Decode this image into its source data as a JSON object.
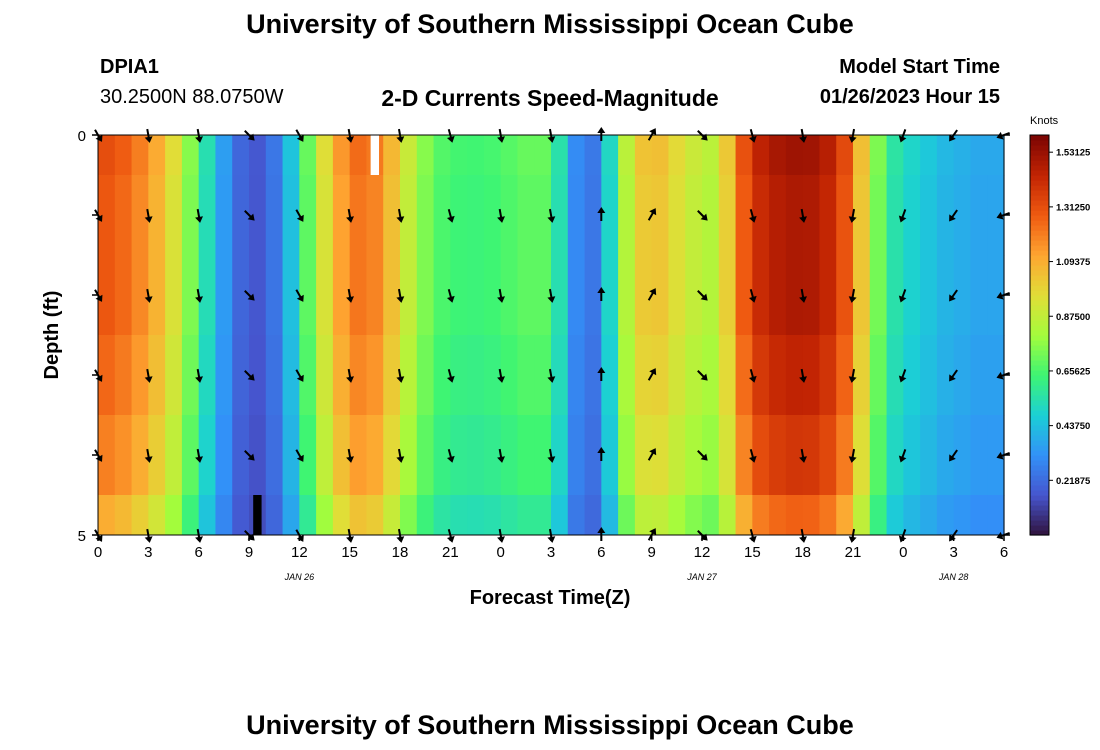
{
  "header": {
    "title": "University of Southern Mississippi Ocean Cube",
    "station_id": "DPIA1",
    "station_coords": "30.2500N  88.0750W",
    "chart_subtitle": "2-D Currents Speed-Magnitude",
    "model_label": "Model Start Time",
    "model_time": "01/26/2023 Hour 15"
  },
  "footer": {
    "title_repeat": "University of Southern Mississippi Ocean Cube"
  },
  "colors": {
    "background": "#ffffff",
    "axis": "#000000",
    "arrow": "#000000"
  },
  "chart_data": {
    "type": "heatmap",
    "title": "2-D Currents Speed-Magnitude",
    "xlabel": "Forecast Time(Z)",
    "ylabel": "Depth (ft)",
    "x_tick_labels": [
      "0",
      "3",
      "6",
      "9",
      "12",
      "15",
      "18",
      "21",
      "0",
      "3",
      "6",
      "9",
      "12",
      "15",
      "18",
      "21",
      "0",
      "3",
      "6"
    ],
    "y_tick_labels": [
      "0",
      "5"
    ],
    "ylim": [
      0,
      5
    ],
    "date_labels": [
      {
        "text": "JAN 26",
        "tick_index": 4
      },
      {
        "text": "JAN 27",
        "tick_index": 12
      },
      {
        "text": "JAN 28",
        "tick_index": 17
      }
    ],
    "colorbar": {
      "unit": "Knots",
      "min": 0,
      "max": 1.6,
      "tick_values": [
        1.53125,
        1.3125,
        1.09375,
        0.875,
        0.65625,
        0.4375,
        0.21875
      ],
      "tick_labels": [
        "1.53125",
        "1.31250",
        "1.09375",
        "0.87500",
        "0.65625",
        "0.43750",
        "0.21875"
      ]
    },
    "hours": [
      0,
      1,
      2,
      3,
      4,
      5,
      6,
      7,
      8,
      9,
      10,
      11,
      12,
      13,
      14,
      15,
      16,
      17,
      18,
      19,
      20,
      21,
      22,
      23,
      24,
      25,
      26,
      27,
      28,
      29,
      30,
      31,
      32,
      33,
      34,
      35,
      36,
      37,
      38,
      39,
      40,
      41,
      42,
      43,
      44,
      45,
      46,
      47,
      48,
      49,
      50,
      51,
      52,
      53,
      54
    ],
    "depth_bins": [
      0,
      0.5,
      1.5,
      2.5,
      3.5,
      4.5,
      5
    ],
    "speed_profile_knots": [
      1.3,
      1.28,
      1.22,
      1.14,
      1.02,
      0.86,
      0.62,
      0.44,
      0.25,
      0.16,
      0.17,
      0.32,
      0.56,
      0.82,
      1.05,
      1.2,
      1.24,
      1.14,
      0.95,
      0.8,
      0.68,
      0.64,
      0.63,
      0.63,
      0.65,
      0.68,
      0.7,
      0.68,
      0.4,
      0.2,
      0.3,
      0.7,
      0.98,
      1.05,
      1.0,
      0.9,
      0.86,
      0.82,
      1.18,
      1.38,
      1.46,
      1.48,
      1.5,
      1.47,
      1.4,
      1.2,
      0.85,
      0.6,
      0.5,
      0.48,
      0.42,
      0.4,
      0.38,
      0.36,
      0.38
    ],
    "depth_factors": [
      1.02,
      1.0,
      1.0,
      0.97,
      0.93,
      0.85
    ],
    "gaps": [
      {
        "hour": 16.5,
        "depth_bin": 0,
        "fill": "white"
      },
      {
        "hour": 9.5,
        "depth_bin": 5,
        "fill": "black"
      }
    ],
    "arrow_rows_depth_ft": [
      0,
      1,
      2,
      3,
      4,
      5
    ],
    "arrow_hours": [
      0,
      3,
      6,
      9,
      12,
      15,
      18,
      21,
      24,
      27,
      30,
      33,
      36,
      39,
      42,
      45,
      48,
      51,
      54
    ],
    "arrow_directions_deg": [
      150,
      170,
      170,
      135,
      150,
      170,
      170,
      165,
      170,
      170,
      0,
      30,
      135,
      165,
      170,
      190,
      200,
      215,
      250
    ]
  }
}
